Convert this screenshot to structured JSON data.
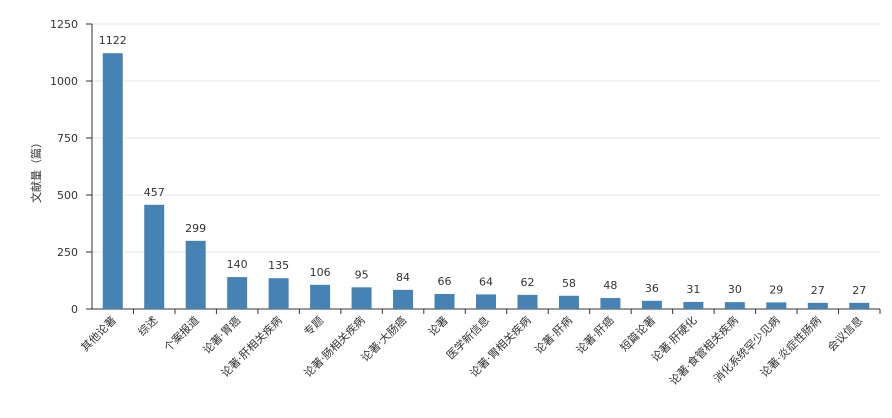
{
  "chart_data": {
    "type": "bar",
    "y_label": "文献量（篇）",
    "categories": [
      "其他论著",
      "综述",
      "个案报道",
      "论著·胃癌",
      "论著·肝相关疾病",
      "专题",
      "论著·肠相关疾病",
      "论著·大肠癌",
      "论著",
      "医学新信息",
      "论著·胃相关疾病",
      "论著·肝病",
      "论著·肝癌",
      "短篇论著",
      "论著·肝硬化",
      "论著·食管相关疾病",
      "消化系统罕少见病",
      "论著·炎症性肠病",
      "会议信息"
    ],
    "values": [
      1122,
      457,
      299,
      140,
      135,
      106,
      95,
      84,
      66,
      64,
      62,
      58,
      48,
      36,
      31,
      30,
      29,
      27,
      27
    ],
    "color": "#4682b4",
    "ylim": [
      0,
      1250
    ],
    "yticks": [
      0,
      250,
      500,
      750,
      1000,
      1250
    ],
    "grid": true
  }
}
